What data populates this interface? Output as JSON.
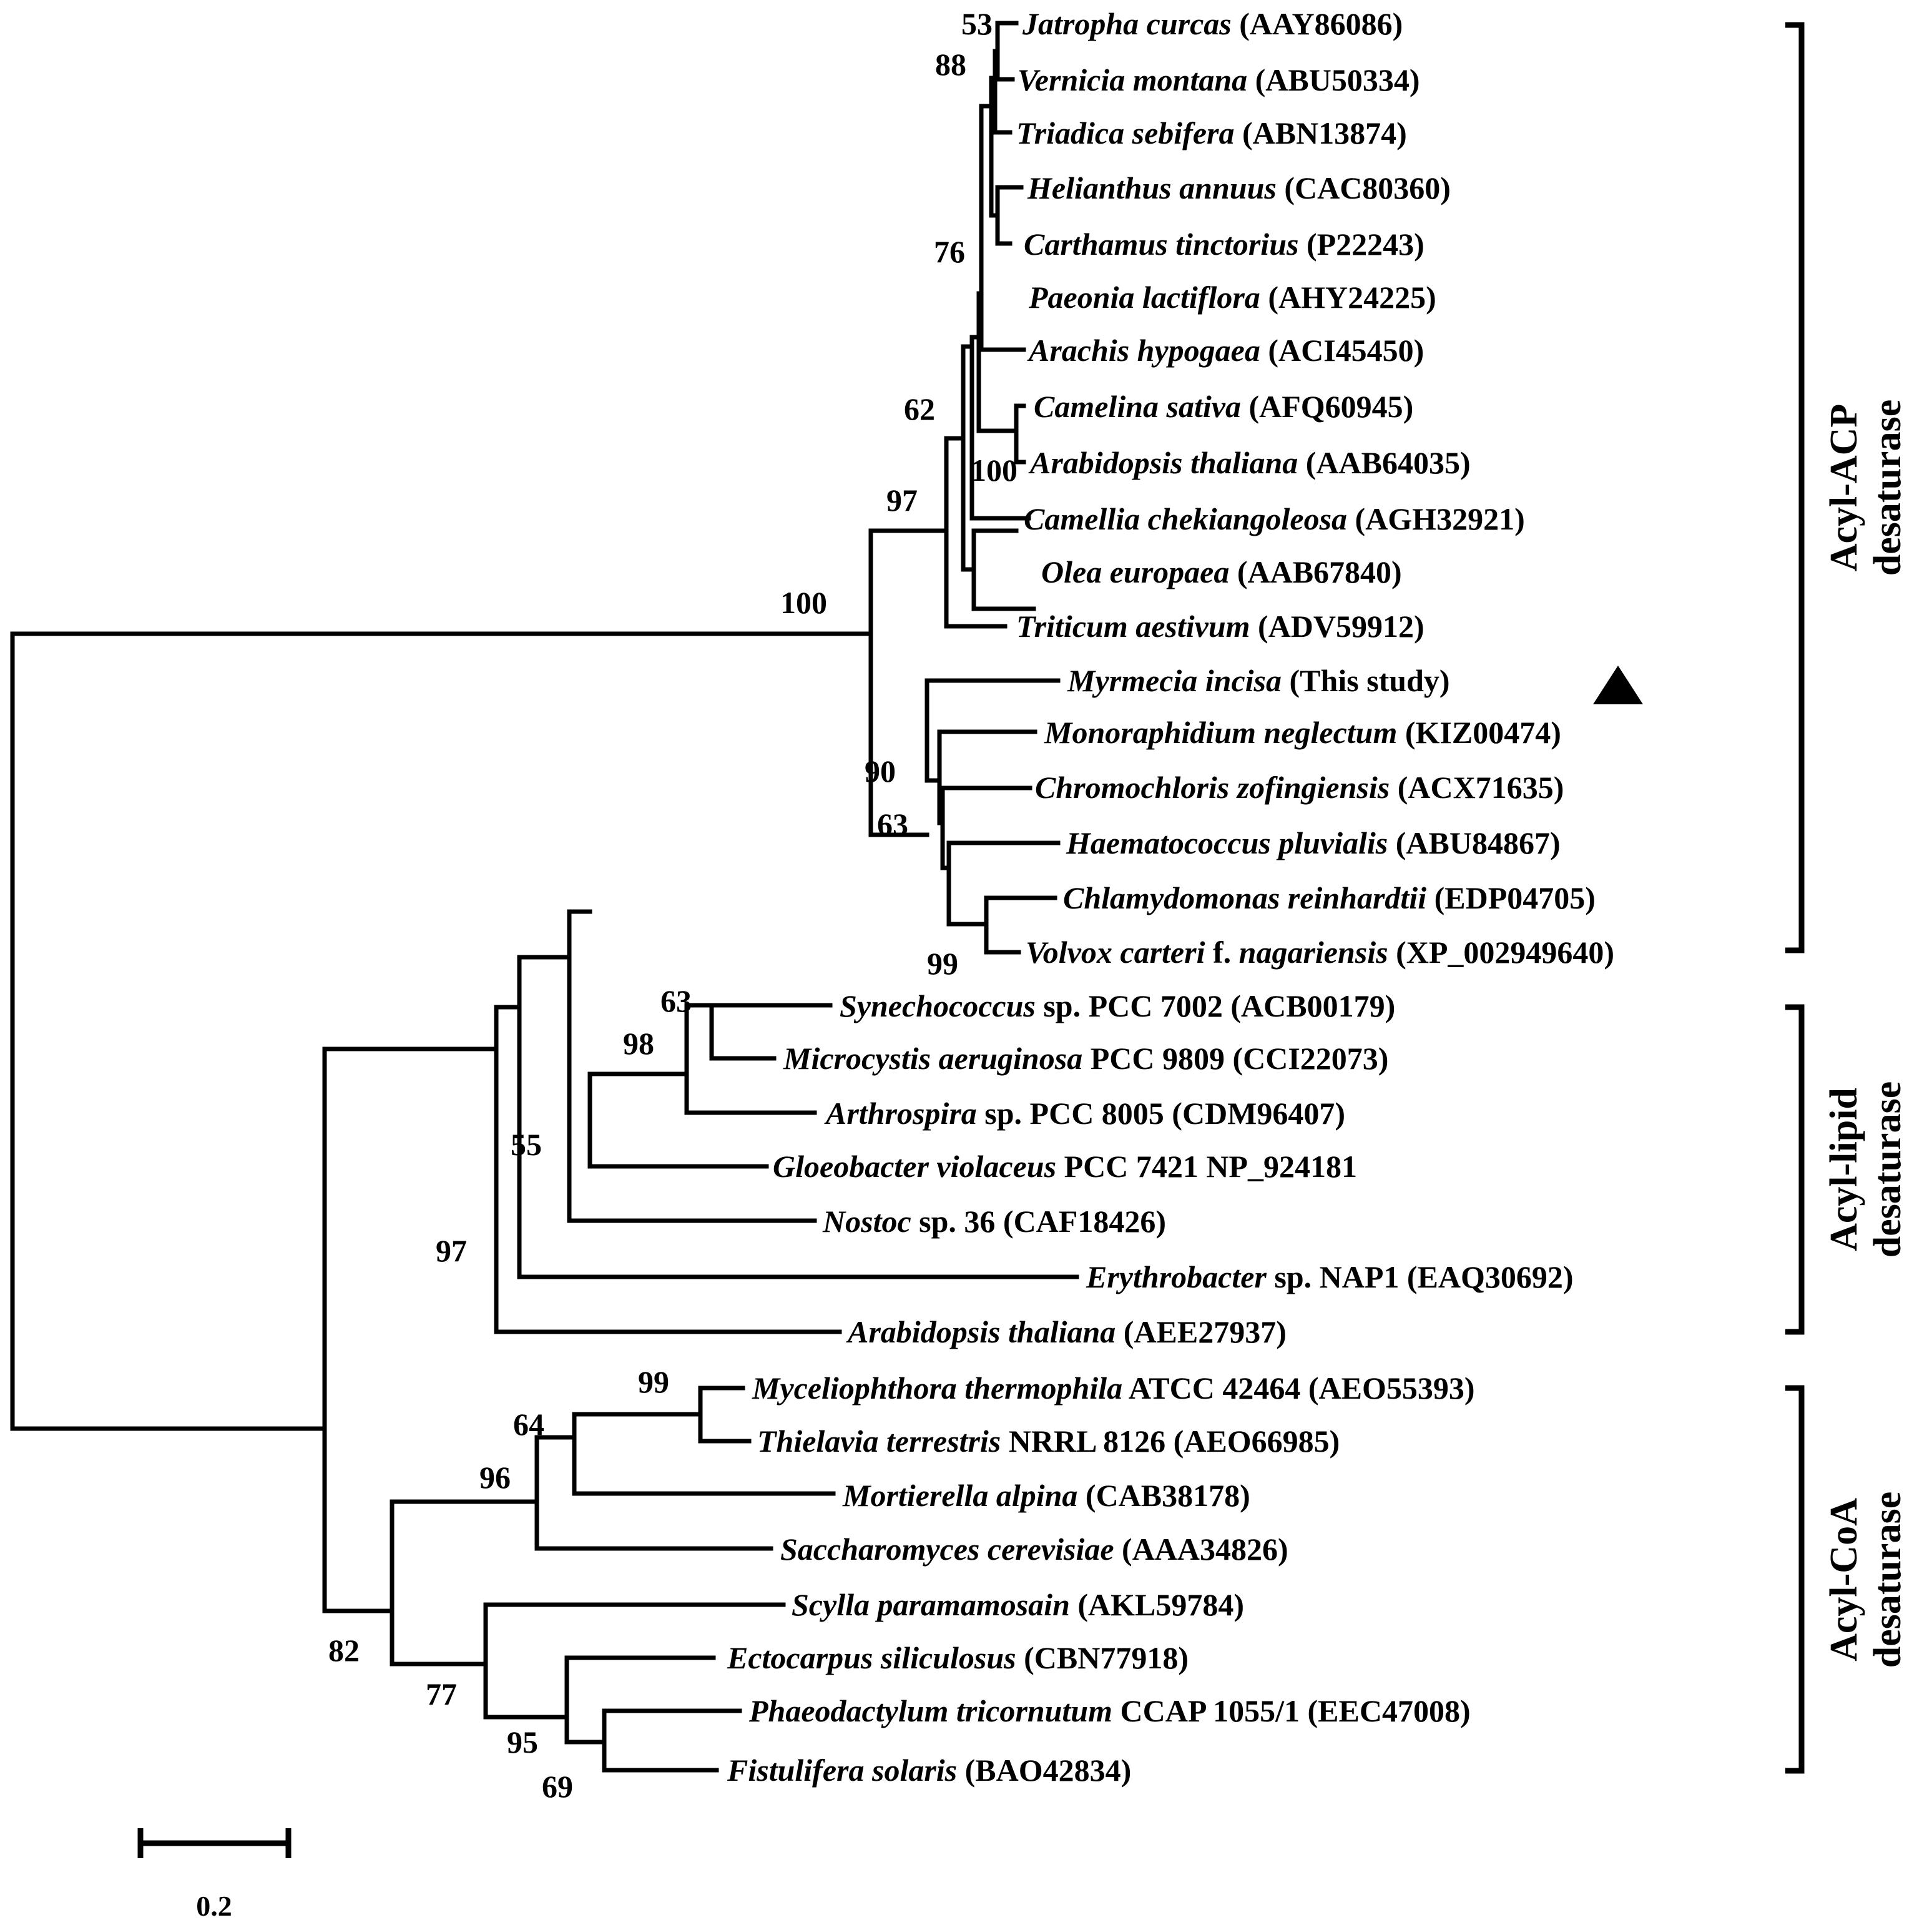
{
  "taxa": [
    {
      "species": "Jatropha curcas",
      "suffix": " (AAY86086)"
    },
    {
      "species": "Vernicia montana",
      "suffix": " (ABU50334)"
    },
    {
      "species": "Triadica sebifera",
      "suffix": " (ABN13874)"
    },
    {
      "species": "Helianthus annuus",
      "suffix": " (CAC80360)"
    },
    {
      "species": "Carthamus tinctorius",
      "suffix": " (P22243)"
    },
    {
      "species": "Paeonia lactiflora",
      "suffix": " (AHY24225)"
    },
    {
      "species": "Arachis hypogaea",
      "suffix": " (ACI45450)"
    },
    {
      "species": "Camelina sativa",
      "suffix": " (AFQ60945)"
    },
    {
      "species": "Arabidopsis thaliana",
      "suffix": " (AAB64035)"
    },
    {
      "species": "Camellia chekiangoleosa",
      "suffix": " (AGH32921)"
    },
    {
      "species": "Olea europaea",
      "suffix": " (AAB67840)"
    },
    {
      "species": "Triticum aestivum",
      "suffix": " (ADV59912)"
    },
    {
      "species": "Myrmecia incisa",
      "suffix": " (This study)"
    },
    {
      "species": "Monoraphidium neglectum",
      "suffix": " (KIZ00474)"
    },
    {
      "species": "Chromochloris zofingiensis",
      "suffix": " (ACX71635)"
    },
    {
      "species": "Haematococcus pluvialis",
      "suffix": " (ABU84867)"
    },
    {
      "species": "Chlamydomonas reinhardtii",
      "suffix": " (EDP04705)"
    },
    {
      "species": "Volvox carteri",
      "suffix": " f. nagariensis (XP_002949640)",
      "suffix_italic": "nagariensis"
    },
    {
      "species": "Synechococcus",
      "suffix": " sp. PCC 7002 (ACB00179)"
    },
    {
      "species": "Microcystis aeruginosa",
      "suffix": " PCC 9809 (CCI22073)"
    },
    {
      "species": "Arthrospira",
      "suffix": " sp. PCC 8005 (CDM96407)"
    },
    {
      "species": "Gloeobacter violaceus",
      "suffix": " PCC 7421 NP_924181"
    },
    {
      "species": "Nostoc",
      "suffix": " sp. 36 (CAF18426)"
    },
    {
      "species": "Erythrobacter",
      "suffix": " sp. NAP1 (EAQ30692)"
    },
    {
      "species": "Arabidopsis thaliana",
      "suffix": " (AEE27937)"
    },
    {
      "species": "Myceliophthora thermophila",
      "suffix": " ATCC 42464 (AEO55393)"
    },
    {
      "species": "Thielavia terrestris",
      "suffix": " NRRL 8126 (AEO66985)"
    },
    {
      "species": "Mortierella alpina",
      "suffix": " (CAB38178)"
    },
    {
      "species": "Saccharomyces cerevisiae",
      "suffix": " (AAA34826)"
    },
    {
      "species": "Scylla paramamosain",
      "suffix": " (AKL59784)"
    },
    {
      "species": "Ectocarpus siliculosus",
      "suffix": " (CBN77918)"
    },
    {
      "species": "Phaeodactylum tricornutum",
      "suffix": " CCAP 1055/1 (EEC47008)"
    },
    {
      "species": "Fistulifera solaris",
      "suffix": " (BAO42834)"
    }
  ],
  "bootstrap": [
    "53",
    "88",
    "76",
    "62",
    "100",
    "97",
    "100",
    "90",
    "63",
    "99",
    "63",
    "98",
    "55",
    "97",
    "99",
    "64",
    "96",
    "82",
    "77",
    "95",
    "69"
  ],
  "groups": [
    {
      "line1": "Acyl-ACP",
      "line2": "desaturase"
    },
    {
      "line1": "Acyl-lipid",
      "line2": "desaturase"
    },
    {
      "line1": "Acyl-CoA",
      "line2": "desaturase"
    }
  ],
  "scale_bar": {
    "label": "0.2"
  },
  "marker": {
    "icon": "triangle-marker-icon",
    "color": "#000000"
  }
}
